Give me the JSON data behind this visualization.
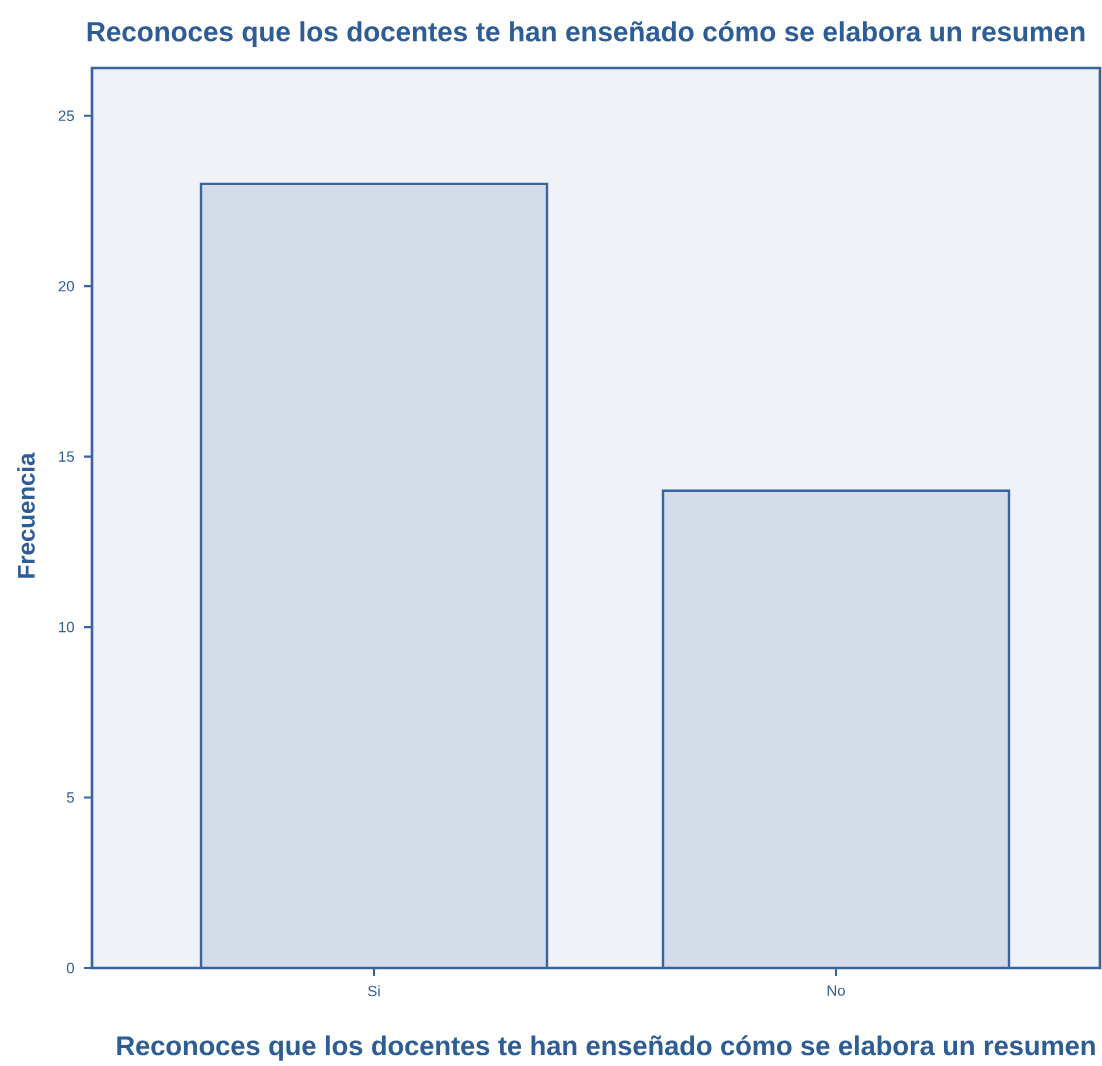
{
  "chart_data": {
    "type": "bar",
    "title": "Reconoces que los docentes te han enseñado cómo se elabora un resumen",
    "xlabel": "Reconoces que los docentes te han enseñado cómo se elabora un resumen",
    "ylabel": "Frecuencia",
    "categories": [
      "Si",
      "No"
    ],
    "values": [
      23,
      14
    ],
    "color": "#d3dce8",
    "ylim": [
      0,
      26.4
    ],
    "yticks": [
      0,
      5,
      10,
      15,
      20,
      25
    ],
    "grid": false
  }
}
